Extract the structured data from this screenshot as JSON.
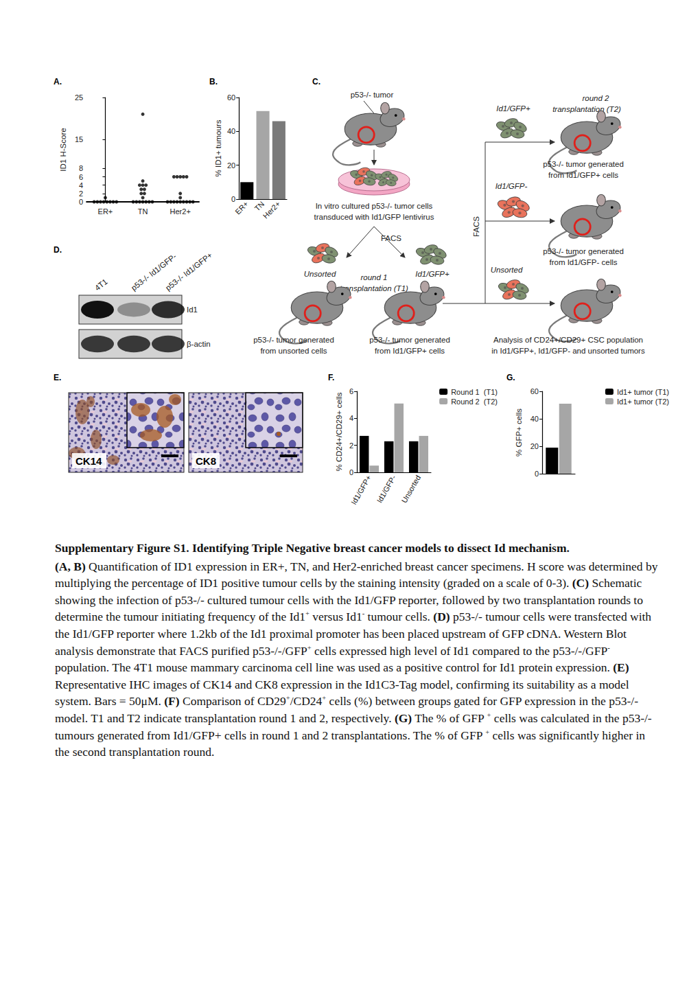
{
  "panel_labels": {
    "A": "A.",
    "B": "B.",
    "C": "C.",
    "D": "D.",
    "E": "E.",
    "F": "F.",
    "G": "G."
  },
  "chart_data": [
    {
      "type": "scatter",
      "y_label": "ID1 H-Score",
      "categories": [
        "ER+",
        "TN",
        "Her2+"
      ],
      "values": [
        [
          1,
          0,
          0,
          0,
          0,
          0,
          0,
          0,
          0
        ],
        [
          21,
          5,
          4,
          4,
          4,
          3,
          3,
          2,
          2,
          1,
          0,
          0,
          0,
          0,
          0,
          0,
          0
        ],
        [
          6,
          6,
          6,
          6,
          6,
          2,
          1,
          0,
          0,
          0,
          0,
          0,
          0,
          0,
          0,
          0
        ]
      ],
      "color": "#000000",
      "marker": "circle",
      "ylim": [
        0,
        25
      ],
      "yticks": [
        0,
        2,
        4,
        6,
        8,
        15,
        25
      ],
      "grid": false
    },
    {
      "type": "bar",
      "y_label": "% ID1+ tumours",
      "categories": [
        "ER+",
        "TN",
        "Her2+"
      ],
      "values": [
        10,
        52,
        46
      ],
      "colors": [
        "#000000",
        "#a6a6a6",
        "#7a7a7a"
      ],
      "ylim": [
        0,
        60
      ],
      "yticks": [
        0,
        20,
        40,
        60
      ],
      "grid": false
    },
    {
      "type": "bar",
      "y_label": "% CD24+/CD29+ cells",
      "categories": [
        "Id1/GFP+",
        "Id1/GFP-",
        "Unsorted"
      ],
      "series": [
        {
          "name": "Round 1  (T1)",
          "color": "#000000",
          "values": [
            2.7,
            2.3,
            2.3
          ]
        },
        {
          "name": "Round 2  (T2)",
          "color": "#a6a6a6",
          "values": [
            0.5,
            5.1,
            2.7
          ]
        }
      ],
      "ylim": [
        0,
        6
      ],
      "yticks": [
        0,
        2,
        4,
        6
      ],
      "legend": "top-right",
      "grid": false
    },
    {
      "type": "bar",
      "y_label": "% GFP+ cells",
      "categories": [
        null
      ],
      "series": [
        {
          "name": "Id1+ tumor (T1)",
          "color": "#000000",
          "values": [
            19
          ]
        },
        {
          "name": "Id1+ tumor (T2)",
          "color": "#a6a6a6",
          "values": [
            51
          ]
        }
      ],
      "ylim": [
        0,
        60
      ],
      "yticks": [
        0,
        20,
        40,
        60
      ],
      "legend": "top-right",
      "tick_labels": "y",
      "grid": false
    }
  ],
  "diagram_c": {
    "p53_tumor": "p53-/- tumor",
    "culture": [
      "In vitro cultured p53-/- tumor cells",
      "transduced with Id1/GFP lentivirus"
    ],
    "facs1": "FACS",
    "unsorted1": "Unsorted",
    "gfp_pos1": "Id1/GFP+",
    "round1": [
      "round 1",
      "transplantation (T1)"
    ],
    "tumor_unsorted": [
      "p53-/- tumor generated",
      "from unsorted cells"
    ],
    "tumor_pos1": [
      "p53-/- tumor generated",
      "from Id1/GFP+ cells"
    ],
    "analysis": [
      "Analysis of CD24+/CD29+ CSC population",
      "in Id1/GFP+, Id1/GFP- and unsorted tumors"
    ],
    "gfp_pos2": "Id1/GFP+",
    "round2": [
      "round 2",
      "transplantation (T2)"
    ],
    "tumor_pos2": [
      "p53-/- tumor generated",
      "from Id1/GFP+ cells"
    ],
    "gfp_neg2": "Id1/GFP-",
    "tumor_neg2": [
      "p53-/- tumor generated",
      "from Id1/GFP- cells"
    ],
    "unsorted2": "Unsorted",
    "facs2": "FACS"
  },
  "blot_d": {
    "lanes": [
      "4T1",
      "p53-/- Id1/GFP-",
      "p53-/- Id1/GFP+"
    ],
    "rows": [
      {
        "label": "Id1",
        "intensity": [
          1,
          0.35,
          0.85
        ]
      },
      {
        "label": "β-actin",
        "intensity": [
          0.8,
          0.8,
          0.8
        ]
      }
    ]
  },
  "ihc_e": {
    "images": [
      {
        "label": "CK14"
      },
      {
        "label": "CK8"
      }
    ]
  },
  "caption": {
    "title": "Supplementary Figure S1. Identifying Triple Negative breast cancer models to dissect Id mechanism.",
    "segments": [
      {
        "t": "(A, B)",
        "s": "b"
      },
      {
        "t": " Quantification of ID1 expression in ER+, TN, and Her2-enriched breast cancer specimens. H score was determined by multiplying the percentage of ID1 positive tumour cells by the staining intensity (graded on a scale of 0-3). "
      },
      {
        "t": "(C)",
        "s": "b"
      },
      {
        "t": " Schematic showing the infection of p53-/- cultured tumour cells with the Id1/GFP reporter, followed by two transplantation rounds to determine the tumour initiating frequency of the Id1"
      },
      {
        "t": "+",
        "s": "sup"
      },
      {
        "t": " versus Id1"
      },
      {
        "t": "-",
        "s": "sup"
      },
      {
        "t": " tumour cells. "
      },
      {
        "t": "(D)",
        "s": "b"
      },
      {
        "t": " p53-/- tumour cells were transfected with the Id1/GFP reporter where 1.2kb of the Id1 proximal promoter has been placed upstream of GFP cDNA. Western Blot analysis demonstrate that FACS purified p53-/-/GFP"
      },
      {
        "t": "+",
        "s": "sup"
      },
      {
        "t": " cells expressed high level of Id1 compared to the p53-/-/GFP"
      },
      {
        "t": "-",
        "s": "sup"
      },
      {
        "t": " population. The 4T1 mouse mammary carcinoma cell line was used as a positive control for Id1 protein expression. "
      },
      {
        "t": "(E)",
        "s": "b"
      },
      {
        "t": " Representative IHC images of CK14 and CK8 expression in the Id1C3-Tag model, confirming its suitability as a model system. Bars = 50μM. "
      },
      {
        "t": "(F)",
        "s": "b"
      },
      {
        "t": " Comparison of CD29"
      },
      {
        "t": "+",
        "s": "sup"
      },
      {
        "t": "/CD24"
      },
      {
        "t": "+",
        "s": "sup"
      },
      {
        "t": " cells (%) between groups gated for GFP expression in the p53-/- model. T1 and T2 indicate transplantation round 1 and 2, respectively. "
      },
      {
        "t": "(G)",
        "s": "b"
      },
      {
        "t": " The % of GFP "
      },
      {
        "t": "+",
        "s": "sup"
      },
      {
        "t": " cells was calculated in the p53-/- tumours generated from Id1/GFP+ cells in round 1 and 2 transplantations. The % of GFP "
      },
      {
        "t": "+",
        "s": "sup"
      },
      {
        "t": " cells was significantly higher in the second transplantation round."
      }
    ]
  }
}
